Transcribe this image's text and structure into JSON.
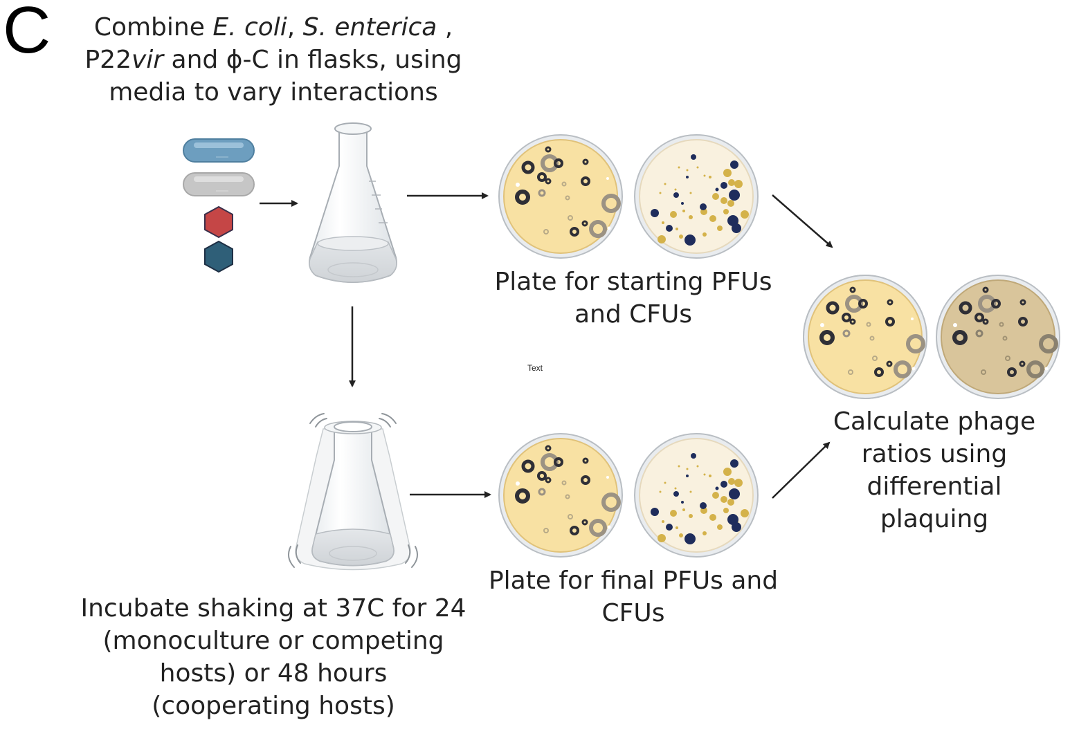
{
  "panel_label": "C",
  "steps": {
    "combine": {
      "line1_pre": "Combine ",
      "ecoli": "E. coli",
      "sep": ", ",
      "senterica": "S. enterica",
      "line1_post": " ,",
      "p22": "P22",
      "vir": "vir",
      "line2_post": " and ϕ-C in flasks, using",
      "line3": "media to vary interactions"
    },
    "plate_start": {
      "line1": "Plate for starting PFUs",
      "line2": "and CFUs"
    },
    "incubate": {
      "line1": "Incubate shaking at 37C for 24",
      "line2": "(monoculture or competing",
      "line3": "hosts) or 48  hours",
      "line4": "(cooperating hosts)"
    },
    "plate_final": {
      "line1": "Plate for final PFUs and",
      "line2": "CFUs"
    },
    "calculate": {
      "line1": "Calculate phage",
      "line2": "ratios using",
      "line3": "differential",
      "line4": "plaquing"
    }
  },
  "stray_label": "Text",
  "icons": {
    "bacterium_1": "ecoli-rod-icon",
    "bacterium_2": "senterica-rod-icon",
    "phage_1": "p22vir-phage-icon",
    "phage_2": "phi-c-phage-icon",
    "flask": "erlenmeyer-flask-icon",
    "shaking_flask": "shaking-flask-icon",
    "plate_plaques": "plaque-plate-icon",
    "plate_colonies": "colony-plate-icon"
  },
  "colors": {
    "ecoli": "#6d9ebf",
    "senterica": "#c6c6c6",
    "p22vir": "#c54646",
    "phi_c": "#2f5f78",
    "agar_yellow": "#f8e1a3",
    "agar_cream": "#f9f1df",
    "agar_tan": "#d9c59b",
    "colony_navy": "#1f2d5c",
    "colony_gold": "#d4b24a"
  }
}
